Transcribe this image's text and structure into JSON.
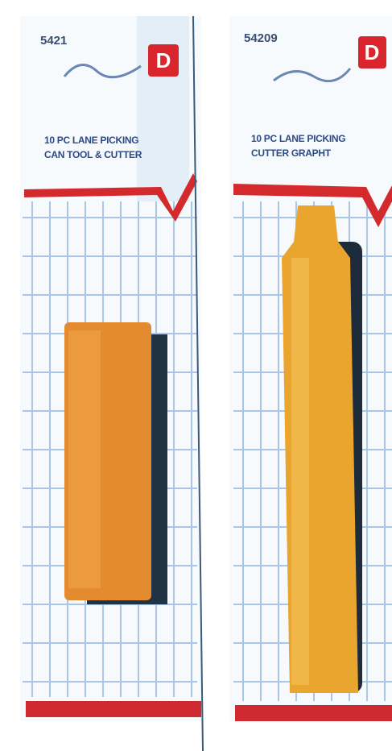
{
  "packages": [
    {
      "code": "5421",
      "logo": "D",
      "title_lines": [
        "10 PC LANE PICKING",
        "CAN TOOL & CUTTER"
      ]
    },
    {
      "code": "54209",
      "logo": "D",
      "title_lines": [
        "10 PC LANE PICKING",
        "CUTTER GRAPHT"
      ]
    }
  ]
}
